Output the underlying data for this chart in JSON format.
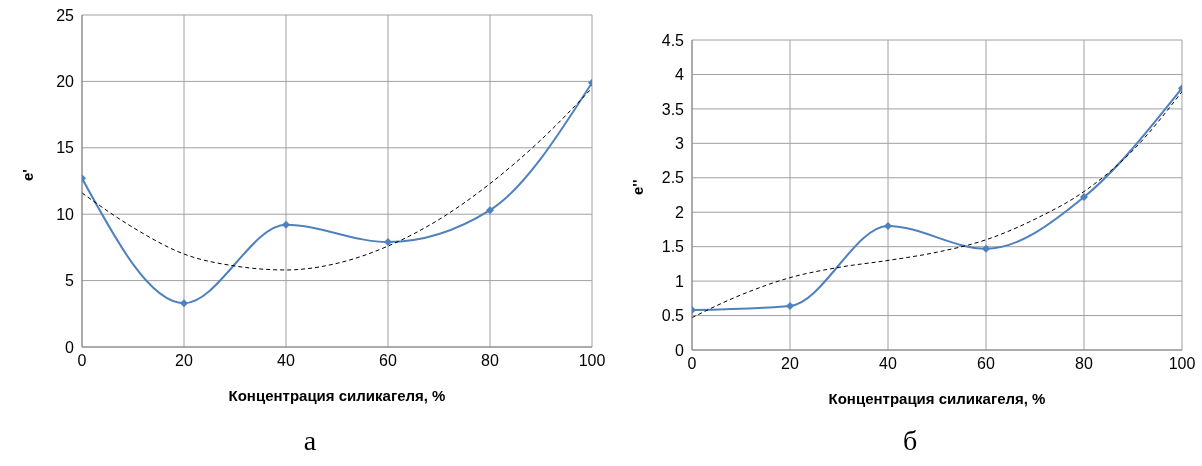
{
  "chart_data": [
    {
      "type": "line",
      "xlabel": "Концентрация силикагеля, %",
      "ylabel": "e'",
      "xlim": [
        0,
        100
      ],
      "xticks": [
        0,
        20,
        40,
        60,
        80,
        100
      ],
      "ylim": [
        0,
        25
      ],
      "yticks": [
        0,
        5,
        10,
        15,
        20,
        25
      ],
      "grid": true,
      "annotations": [
        "а"
      ],
      "series": [
        {
          "color": "#4f81bd",
          "x": [
            0,
            20,
            40,
            60,
            80,
            100
          ],
          "values": [
            12.7,
            3.3,
            9.2,
            7.9,
            10.3,
            19.9
          ],
          "marker": "diamond",
          "line_style": "solid"
        },
        {
          "color": "#000000",
          "x": [
            0,
            10,
            20,
            30,
            40,
            50,
            60,
            70,
            80,
            90,
            100
          ],
          "values": [
            11.6,
            9,
            7,
            6.1,
            5.8,
            6.3,
            7.6,
            9.6,
            12.3,
            15.6,
            19.5
          ],
          "marker": "none",
          "line_style": "dashed"
        }
      ]
    },
    {
      "type": "line",
      "xlabel": "Концентрация силикагеля, %",
      "ylabel": "e''",
      "xlim": [
        0,
        100
      ],
      "xticks": [
        0,
        20,
        40,
        60,
        80,
        100
      ],
      "ylim": [
        0,
        4.5
      ],
      "yticks": [
        0,
        0.5,
        1,
        1.5,
        2,
        2.5,
        3,
        3.5,
        4,
        4.5
      ],
      "grid": true,
      "annotations": [
        "б"
      ],
      "series": [
        {
          "color": "#4f81bd",
          "x": [
            0,
            20,
            40,
            60,
            80,
            100
          ],
          "values": [
            0.58,
            0.64,
            1.8,
            1.47,
            2.22,
            3.8
          ],
          "marker": "diamond",
          "line_style": "solid"
        },
        {
          "color": "#000000",
          "x": [
            0,
            10,
            20,
            30,
            40,
            50,
            60,
            70,
            80,
            90,
            100
          ],
          "values": [
            0.47,
            0.8,
            1.05,
            1.2,
            1.3,
            1.42,
            1.6,
            1.9,
            2.3,
            2.9,
            3.75
          ],
          "marker": "none",
          "line_style": "dashed"
        }
      ]
    }
  ]
}
